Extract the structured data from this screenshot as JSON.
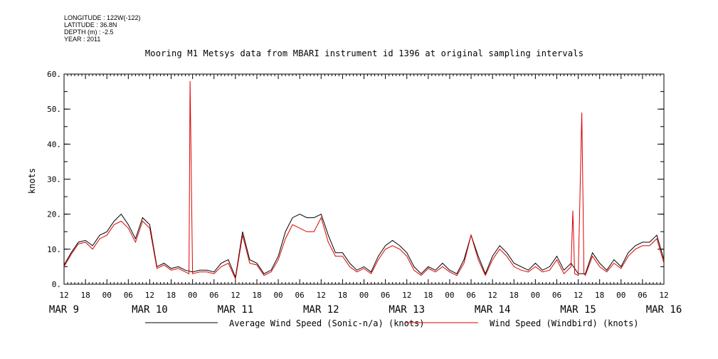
{
  "meta": {
    "longitude": "LONGITUDE : 122W(-122)",
    "latitude": "LATITUDE : 36.8N",
    "depth": "DEPTH (m) : -2.5",
    "year": "YEAR : 2011"
  },
  "chart_data": {
    "type": "line",
    "title": "Mooring M1 Metsys data from MBARI instrument id 1396 at original sampling intervals",
    "ylabel": "knots",
    "ylim": [
      0,
      60
    ],
    "yticks": [
      "0.",
      "10.",
      "20.",
      "30.",
      "40.",
      "50.",
      "60."
    ],
    "x_range_hours": [
      12,
      180
    ],
    "x_hour_labels": [
      "12",
      "18",
      "00",
      "06",
      "12",
      "18",
      "00",
      "06",
      "12",
      "18",
      "00",
      "06",
      "12",
      "18",
      "00",
      "06",
      "12",
      "18",
      "00",
      "06",
      "12",
      "18",
      "00",
      "06",
      "12",
      "18",
      "00",
      "06",
      "12"
    ],
    "x_date_labels": [
      "MAR  9",
      "MAR 10",
      "MAR 11",
      "MAR 12",
      "MAR 13",
      "MAR 14",
      "MAR 15",
      "MAR 16"
    ],
    "x_date_label_hours": [
      12,
      36,
      60,
      84,
      108,
      132,
      156,
      180
    ],
    "legend": [
      "Average Wind Speed (Sonic-n/a) (knots)",
      "Wind Speed (Windbird) (knots)"
    ],
    "series": [
      {
        "name": "Average Wind Speed (Sonic-n/a) (knots)",
        "color": "#000000",
        "points": [
          [
            12,
            5.5
          ],
          [
            14,
            9
          ],
          [
            16,
            12
          ],
          [
            18,
            12.5
          ],
          [
            20,
            11
          ],
          [
            22,
            14
          ],
          [
            24,
            15
          ],
          [
            26,
            18
          ],
          [
            28,
            20
          ],
          [
            30,
            17
          ],
          [
            32,
            13
          ],
          [
            34,
            19
          ],
          [
            36,
            17
          ],
          [
            38,
            5
          ],
          [
            40,
            6
          ],
          [
            42,
            4.5
          ],
          [
            44,
            5
          ],
          [
            46,
            4
          ],
          [
            48,
            3.5
          ],
          [
            50,
            4
          ],
          [
            52,
            4
          ],
          [
            54,
            3.5
          ],
          [
            56,
            6
          ],
          [
            58,
            7
          ],
          [
            60,
            2
          ],
          [
            62,
            15
          ],
          [
            64,
            7
          ],
          [
            66,
            6
          ],
          [
            68,
            3
          ],
          [
            70,
            4
          ],
          [
            72,
            8
          ],
          [
            74,
            15
          ],
          [
            76,
            19
          ],
          [
            78,
            20
          ],
          [
            80,
            19
          ],
          [
            82,
            19
          ],
          [
            84,
            20
          ],
          [
            86,
            14
          ],
          [
            88,
            9
          ],
          [
            90,
            9
          ],
          [
            92,
            6
          ],
          [
            94,
            4
          ],
          [
            96,
            5
          ],
          [
            98,
            3.5
          ],
          [
            100,
            8
          ],
          [
            102,
            11
          ],
          [
            104,
            12.5
          ],
          [
            106,
            11
          ],
          [
            108,
            9
          ],
          [
            110,
            5
          ],
          [
            112,
            3
          ],
          [
            114,
            5
          ],
          [
            116,
            4
          ],
          [
            118,
            6
          ],
          [
            120,
            4
          ],
          [
            122,
            3
          ],
          [
            124,
            7
          ],
          [
            126,
            14
          ],
          [
            128,
            8
          ],
          [
            130,
            3
          ],
          [
            132,
            8
          ],
          [
            134,
            11
          ],
          [
            136,
            9
          ],
          [
            138,
            6
          ],
          [
            140,
            5
          ],
          [
            142,
            4
          ],
          [
            144,
            6
          ],
          [
            146,
            4
          ],
          [
            148,
            5
          ],
          [
            150,
            8
          ],
          [
            152,
            4
          ],
          [
            154,
            6
          ],
          [
            156,
            3
          ],
          [
            158,
            3
          ],
          [
            160,
            9
          ],
          [
            162,
            6
          ],
          [
            164,
            4
          ],
          [
            166,
            7
          ],
          [
            168,
            5
          ],
          [
            170,
            9
          ],
          [
            172,
            11
          ],
          [
            174,
            12
          ],
          [
            176,
            12
          ],
          [
            178,
            14
          ],
          [
            180,
            7
          ]
        ]
      },
      {
        "name": "Wind Speed (Windbird) (knots)",
        "color": "#dd0000",
        "points": [
          [
            12,
            5
          ],
          [
            14,
            8.5
          ],
          [
            16,
            11.5
          ],
          [
            18,
            12
          ],
          [
            20,
            10
          ],
          [
            22,
            13
          ],
          [
            24,
            14
          ],
          [
            26,
            17
          ],
          [
            28,
            18
          ],
          [
            30,
            16
          ],
          [
            32,
            12
          ],
          [
            34,
            18
          ],
          [
            36,
            16
          ],
          [
            38,
            4.5
          ],
          [
            40,
            5.5
          ],
          [
            42,
            4
          ],
          [
            44,
            4.5
          ],
          [
            46,
            3.5
          ],
          [
            47,
            3
          ],
          [
            47.3,
            58
          ],
          [
            47.6,
            35
          ],
          [
            48,
            3
          ],
          [
            50,
            3.5
          ],
          [
            52,
            3.5
          ],
          [
            54,
            3
          ],
          [
            56,
            5
          ],
          [
            58,
            6
          ],
          [
            60,
            1.5
          ],
          [
            62,
            14
          ],
          [
            64,
            6
          ],
          [
            66,
            5.5
          ],
          [
            68,
            2.5
          ],
          [
            70,
            3.5
          ],
          [
            72,
            7
          ],
          [
            74,
            13
          ],
          [
            76,
            17
          ],
          [
            78,
            16
          ],
          [
            80,
            15
          ],
          [
            82,
            15
          ],
          [
            84,
            19
          ],
          [
            86,
            12
          ],
          [
            88,
            8
          ],
          [
            90,
            8
          ],
          [
            92,
            5
          ],
          [
            94,
            3.5
          ],
          [
            96,
            4.5
          ],
          [
            98,
            3
          ],
          [
            100,
            7
          ],
          [
            102,
            10
          ],
          [
            104,
            11
          ],
          [
            106,
            10
          ],
          [
            108,
            8
          ],
          [
            110,
            4
          ],
          [
            112,
            2.5
          ],
          [
            114,
            4.5
          ],
          [
            116,
            3.5
          ],
          [
            118,
            5
          ],
          [
            120,
            3.5
          ],
          [
            122,
            2.5
          ],
          [
            124,
            6
          ],
          [
            126,
            14
          ],
          [
            128,
            7
          ],
          [
            130,
            2.5
          ],
          [
            132,
            7
          ],
          [
            134,
            10
          ],
          [
            136,
            8
          ],
          [
            138,
            5
          ],
          [
            140,
            4
          ],
          [
            142,
            3.5
          ],
          [
            144,
            5
          ],
          [
            146,
            3.5
          ],
          [
            148,
            4
          ],
          [
            150,
            7
          ],
          [
            152,
            3
          ],
          [
            154,
            5
          ],
          [
            154.5,
            21
          ],
          [
            155,
            3
          ],
          [
            156,
            2.5
          ],
          [
            157,
            49
          ],
          [
            157.3,
            27
          ],
          [
            157.6,
            3
          ],
          [
            158,
            2.5
          ],
          [
            160,
            8
          ],
          [
            162,
            5
          ],
          [
            164,
            3.5
          ],
          [
            166,
            6
          ],
          [
            168,
            4.5
          ],
          [
            170,
            8
          ],
          [
            172,
            10
          ],
          [
            174,
            11
          ],
          [
            176,
            11
          ],
          [
            178,
            13
          ],
          [
            180,
            6
          ]
        ]
      }
    ]
  }
}
